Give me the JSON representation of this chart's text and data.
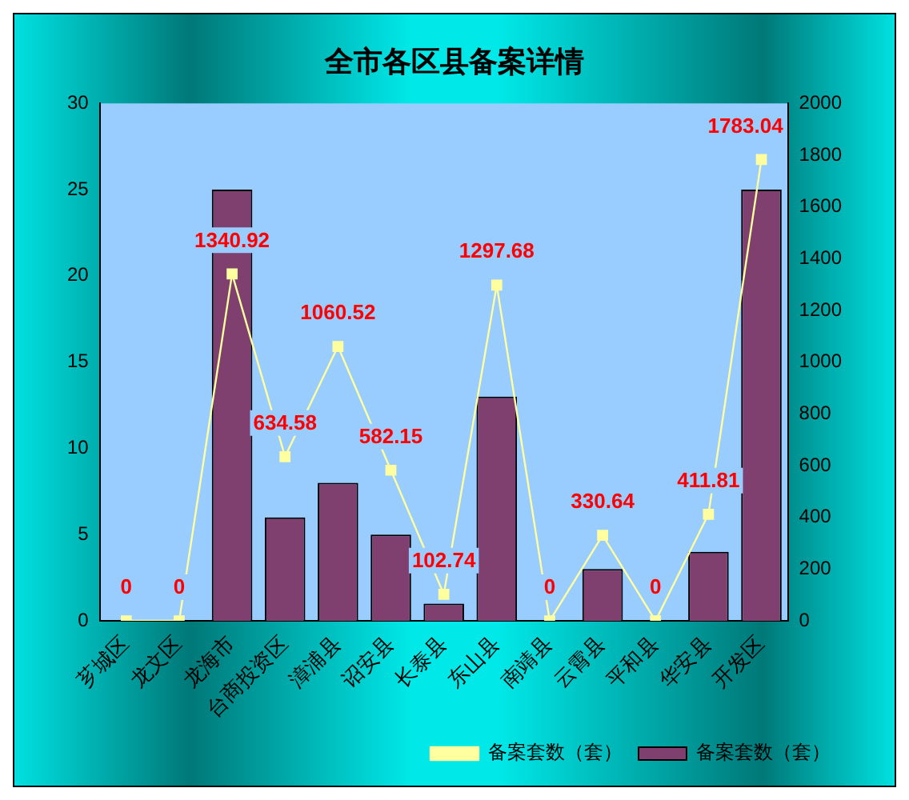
{
  "chart_data": {
    "type": "bar",
    "title": "全市各区县备案详情",
    "categories": [
      "芗城区",
      "龙文区",
      "龙海市",
      "台商投资区",
      "漳浦县",
      "诏安县",
      "长泰县",
      "东山县",
      "南靖县",
      "云霄县",
      "平和县",
      "华安县",
      "开发区"
    ],
    "series": [
      {
        "name": "备案套数（套）",
        "color": "#7f3f6f",
        "values": [
          0,
          0,
          25,
          6,
          8,
          5,
          1,
          13,
          0,
          3,
          0,
          4,
          25
        ]
      },
      {
        "name": "备案套数（套）",
        "type": "line",
        "axis": "y2",
        "color": "#ffffa0",
        "values": [
          0,
          0,
          1340.92,
          634.58,
          1060.52,
          582.15,
          102.74,
          1297.68,
          0,
          330.64,
          0,
          411.81,
          1783.04
        ],
        "value_labels": [
          "0",
          "0",
          "1340.92",
          "634.58",
          "1060.52",
          "582.15",
          "102.74",
          "1297.68",
          "0",
          "330.64",
          "0",
          "411.81",
          "1783.04"
        ]
      }
    ],
    "ylim": [
      0,
      30
    ],
    "yticks": [
      0,
      5,
      10,
      15,
      20,
      25,
      30
    ],
    "y2lim": [
      0,
      2000
    ],
    "y2ticks": [
      0,
      200,
      400,
      600,
      800,
      1000,
      1200,
      1400,
      1600,
      1800,
      2000
    ],
    "grid": false,
    "legend": "bottom right",
    "marker": "square",
    "line_style": "solid"
  }
}
